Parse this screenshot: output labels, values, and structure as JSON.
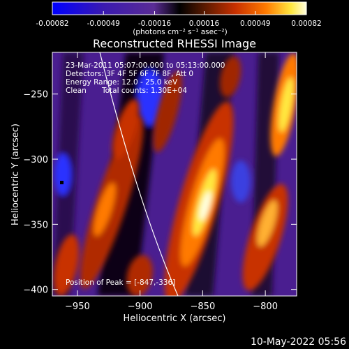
{
  "chart_data": {
    "type": "heatmap",
    "title": "Reconstructed RHESSI Image",
    "xlabel": "Heliocentric X (arcsec)",
    "ylabel": "Heliocentric Y (arcsec)",
    "xlim": [
      -970,
      -775
    ],
    "ylim": [
      -405,
      -218
    ],
    "x_ticks": [
      -950,
      -900,
      -850,
      -800
    ],
    "y_ticks": [
      -250,
      -300,
      -350,
      -400
    ],
    "colorbar": {
      "min": -0.00082,
      "max": 0.00082,
      "tick_values": [
        -0.00082,
        -0.00049,
        -0.00016,
        0.00016,
        0.00049,
        0.00082
      ],
      "tick_labels": [
        "-0.00082",
        "-0.00049",
        "-0.00016",
        "0.00016",
        "0.00049",
        "0.00082"
      ],
      "unit_label": "(photons cm⁻² s⁻¹ asec⁻²)",
      "colormap": [
        "#0000ff",
        "#3a1ab0",
        "#5a2c95",
        "#000000",
        "#5a1a00",
        "#c83000",
        "#ff7a00",
        "#ffe840",
        "#ffffe0"
      ]
    },
    "annotations": {
      "time_range": "23-Mar-2011 05:07:00.000 to 05:13:00.000",
      "detectors": "Detectors: 3F 4F 5F 6F 7F 8F, Att 0",
      "energy": "Energy Range: 12.0 - 25.0 keV",
      "algorithm": "Clean",
      "counts": "Total counts: 1.30E+04",
      "peak": "Position of Peak = [-847,-336]"
    },
    "peak_position": [
      -847,
      -336
    ],
    "limb_curve": [
      [
        -930,
        -218
      ],
      [
        -905,
        -300
      ],
      [
        -880,
        -370
      ],
      [
        -862,
        -405
      ]
    ],
    "bright_ridges": [
      {
        "x_top": -805,
        "x_bottom": -845,
        "y_top": -240,
        "y_bottom": -405,
        "peak_y": -336,
        "intensity": 0.00082
      },
      {
        "x_top": -855,
        "x_bottom": -905,
        "y_top": -250,
        "y_bottom": -405,
        "intensity": 0.00055
      },
      {
        "x_top": -780,
        "x_bottom": -800,
        "y_top": -250,
        "y_bottom": -330,
        "intensity": 0.00065
      },
      {
        "x_top": -930,
        "x_bottom": -950,
        "y_top": -250,
        "y_bottom": -405,
        "intensity": 0.00045
      }
    ]
  },
  "footer": {
    "date": "10-May-2022 05:56"
  }
}
